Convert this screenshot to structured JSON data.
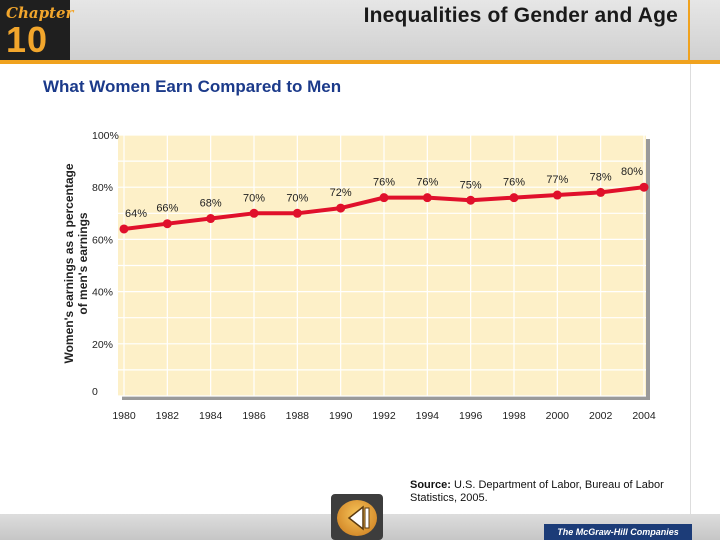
{
  "header": {
    "chapter_label": "Chapter",
    "chapter_number": "10",
    "title": "Inequalities of Gender and Age"
  },
  "page_title": "What Women Earn Compared to Men",
  "chart_data": {
    "type": "line",
    "title": "",
    "xlabel": "",
    "ylabel": "Women's earnings as a percentage of men's earnings",
    "x": [
      1980,
      1982,
      1984,
      1986,
      1988,
      1990,
      1992,
      1994,
      1996,
      1998,
      2000,
      2002,
      2004
    ],
    "values": [
      64,
      66,
      68,
      70,
      70,
      72,
      76,
      76,
      75,
      76,
      77,
      78,
      80
    ],
    "point_labels": [
      "64%",
      "66%",
      "68%",
      "70%",
      "70%",
      "72%",
      "76%",
      "76%",
      "75%",
      "76%",
      "77%",
      "78%",
      "80%"
    ],
    "y_tick_labels": [
      "0",
      "20%",
      "40%",
      "60%",
      "80%",
      "100%"
    ],
    "x_tick_labels": [
      "1980",
      "1982",
      "1984",
      "1986",
      "1988",
      "1990",
      "1992",
      "1994",
      "1996",
      "1998",
      "2000",
      "2002",
      "2004"
    ],
    "ylim": [
      0,
      100
    ],
    "xlim": [
      1980,
      2004
    ],
    "grid": true,
    "colors": {
      "plot_bg": "#fdf0c8",
      "grid": "#ffffff",
      "line": "#e0102b",
      "text": "#222222"
    }
  },
  "source": {
    "label": "Source:",
    "text": "U.S. Department of Labor, Bureau of Labor Statistics, 2005."
  },
  "footer": {
    "back_icon": "back-arrow-icon",
    "brand": "The McGraw-Hill Companies"
  }
}
